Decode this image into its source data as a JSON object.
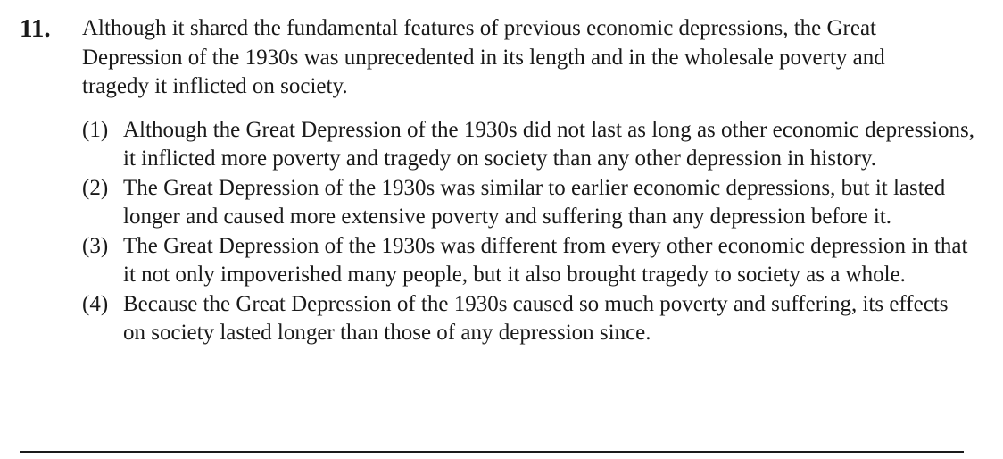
{
  "question": {
    "number": "11.",
    "stem": "Although it shared the fundamental features of previous economic depressions, the Great Depression of the 1930s was unprecedented in its length and in the wholesale poverty and tragedy it inflicted on society.",
    "options": [
      {
        "num": "(1)",
        "text": "Although the Great Depression of the 1930s did not last as long as other economic depressions, it inflicted more poverty and tragedy on society than any other depression in history."
      },
      {
        "num": "(2)",
        "text": "The Great Depression of the 1930s was similar to earlier economic depressions, but it lasted longer and caused more extensive poverty and suffering than any depression before it."
      },
      {
        "num": "(3)",
        "text": "The Great Depression of the 1930s was different from every other economic depression in that it not only impoverished many people, but it also brought tragedy to society as a whole."
      },
      {
        "num": "(4)",
        "text": "Because the Great Depression of the 1930s caused so much poverty and suffering, its effects on society lasted longer than those of any depression since."
      }
    ]
  }
}
